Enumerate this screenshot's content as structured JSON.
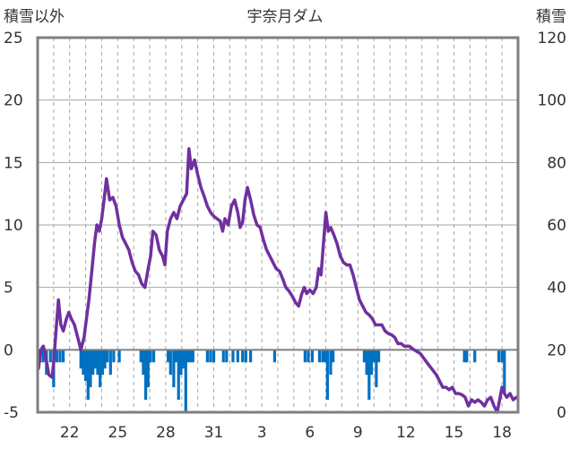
{
  "chart_data": {
    "type": "line",
    "title": "宇奈月ダム",
    "left_axis": {
      "title": "積雪以外",
      "ylim": [
        -5,
        25
      ],
      "ticks": [
        -5,
        0,
        5,
        10,
        15,
        20,
        25
      ]
    },
    "right_axis": {
      "title": "積雪",
      "ylim": [
        0,
        120
      ],
      "ticks": [
        0,
        20,
        40,
        60,
        80,
        100,
        120
      ]
    },
    "x_axis": {
      "range": [
        20,
        50
      ],
      "ticks": [
        {
          "x": 22,
          "label": "22"
        },
        {
          "x": 25,
          "label": "25"
        },
        {
          "x": 28,
          "label": "28"
        },
        {
          "x": 31,
          "label": "31"
        },
        {
          "x": 34,
          "label": "3"
        },
        {
          "x": 37,
          "label": "6"
        },
        {
          "x": 40,
          "label": "9"
        },
        {
          "x": 43,
          "label": "12"
        },
        {
          "x": 46,
          "label": "15"
        },
        {
          "x": 49,
          "label": "18"
        }
      ]
    },
    "grid": "horizontal lines at each left-axis tick, dashed vertical lines each day",
    "colors": {
      "line": "#7030A0",
      "bars": "#0070C0",
      "zero_line": "#7f7f7f",
      "frame": "#7f7f7f",
      "grid": "#a6a6a6"
    },
    "series": [
      {
        "axis": "left",
        "type": "line",
        "points": [
          [
            20.05,
            -1.5
          ],
          [
            20.2,
            0.0
          ],
          [
            20.35,
            0.3
          ],
          [
            20.5,
            -0.5
          ],
          [
            20.7,
            -2.0
          ],
          [
            20.9,
            -2.2
          ],
          [
            21.0,
            -1.0
          ],
          [
            21.15,
            1.5
          ],
          [
            21.3,
            4.0
          ],
          [
            21.45,
            2.0
          ],
          [
            21.6,
            1.5
          ],
          [
            21.8,
            2.5
          ],
          [
            21.95,
            3.0
          ],
          [
            22.1,
            2.5
          ],
          [
            22.3,
            2.0
          ],
          [
            22.5,
            1.0
          ],
          [
            22.7,
            0.0
          ],
          [
            22.9,
            1.0
          ],
          [
            23.05,
            2.5
          ],
          [
            23.2,
            4.0
          ],
          [
            23.4,
            6.5
          ],
          [
            23.55,
            8.5
          ],
          [
            23.7,
            10.0
          ],
          [
            23.85,
            9.5
          ],
          [
            24.0,
            10.5
          ],
          [
            24.15,
            12.0
          ],
          [
            24.3,
            13.7
          ],
          [
            24.5,
            12.0
          ],
          [
            24.7,
            12.2
          ],
          [
            24.9,
            11.5
          ],
          [
            25.1,
            10.0
          ],
          [
            25.3,
            9.0
          ],
          [
            25.5,
            8.5
          ],
          [
            25.7,
            8.0
          ],
          [
            25.9,
            7.0
          ],
          [
            26.1,
            6.3
          ],
          [
            26.3,
            6.0
          ],
          [
            26.5,
            5.3
          ],
          [
            26.7,
            5.0
          ],
          [
            26.9,
            6.5
          ],
          [
            27.05,
            7.5
          ],
          [
            27.2,
            9.5
          ],
          [
            27.4,
            9.2
          ],
          [
            27.6,
            8.0
          ],
          [
            27.8,
            7.5
          ],
          [
            27.95,
            6.8
          ],
          [
            28.1,
            9.5
          ],
          [
            28.3,
            10.5
          ],
          [
            28.5,
            11.0
          ],
          [
            28.7,
            10.5
          ],
          [
            28.9,
            11.5
          ],
          [
            29.1,
            12.0
          ],
          [
            29.3,
            12.5
          ],
          [
            29.45,
            16.1
          ],
          [
            29.6,
            14.5
          ],
          [
            29.8,
            15.2
          ],
          [
            30.0,
            14.0
          ],
          [
            30.2,
            13.0
          ],
          [
            30.4,
            12.3
          ],
          [
            30.6,
            11.5
          ],
          [
            30.8,
            11.0
          ],
          [
            31.0,
            10.7
          ],
          [
            31.2,
            10.5
          ],
          [
            31.4,
            10.3
          ],
          [
            31.55,
            9.5
          ],
          [
            31.7,
            10.5
          ],
          [
            31.9,
            10.0
          ],
          [
            32.1,
            11.5
          ],
          [
            32.3,
            12.0
          ],
          [
            32.5,
            11.0
          ],
          [
            32.65,
            9.8
          ],
          [
            32.8,
            10.2
          ],
          [
            32.95,
            12.0
          ],
          [
            33.1,
            13.0
          ],
          [
            33.3,
            12.0
          ],
          [
            33.5,
            10.8
          ],
          [
            33.7,
            10.0
          ],
          [
            33.9,
            9.8
          ],
          [
            34.1,
            8.8
          ],
          [
            34.3,
            8.0
          ],
          [
            34.5,
            7.5
          ],
          [
            34.7,
            7.0
          ],
          [
            34.9,
            6.5
          ],
          [
            35.1,
            6.3
          ],
          [
            35.3,
            5.7
          ],
          [
            35.5,
            5.0
          ],
          [
            35.7,
            4.7
          ],
          [
            35.9,
            4.3
          ],
          [
            36.1,
            3.8
          ],
          [
            36.3,
            3.5
          ],
          [
            36.5,
            4.5
          ],
          [
            36.65,
            5.0
          ],
          [
            36.8,
            4.5
          ],
          [
            37.0,
            4.8
          ],
          [
            37.2,
            4.5
          ],
          [
            37.4,
            5.0
          ],
          [
            37.55,
            6.5
          ],
          [
            37.7,
            6.0
          ],
          [
            37.85,
            8.5
          ],
          [
            38.0,
            11.0
          ],
          [
            38.15,
            9.5
          ],
          [
            38.3,
            9.8
          ],
          [
            38.5,
            9.2
          ],
          [
            38.7,
            8.5
          ],
          [
            38.9,
            7.5
          ],
          [
            39.1,
            7.0
          ],
          [
            39.3,
            6.8
          ],
          [
            39.5,
            6.8
          ],
          [
            39.7,
            6.0
          ],
          [
            39.9,
            5.0
          ],
          [
            40.1,
            4.0
          ],
          [
            40.3,
            3.5
          ],
          [
            40.5,
            3.0
          ],
          [
            40.7,
            2.8
          ],
          [
            40.9,
            2.5
          ],
          [
            41.1,
            2.0
          ],
          [
            41.3,
            2.0
          ],
          [
            41.5,
            2.0
          ],
          [
            41.7,
            1.5
          ],
          [
            41.9,
            1.3
          ],
          [
            42.1,
            1.2
          ],
          [
            42.3,
            1.0
          ],
          [
            42.5,
            0.5
          ],
          [
            42.7,
            0.5
          ],
          [
            42.9,
            0.3
          ],
          [
            43.2,
            0.3
          ],
          [
            43.5,
            0.0
          ],
          [
            43.9,
            -0.3
          ],
          [
            44.3,
            -1.0
          ],
          [
            44.6,
            -1.5
          ],
          [
            44.9,
            -2.0
          ],
          [
            45.1,
            -2.5
          ],
          [
            45.3,
            -3.0
          ],
          [
            45.5,
            -3.0
          ],
          [
            45.7,
            -3.2
          ],
          [
            45.9,
            -3.0
          ],
          [
            46.1,
            -3.5
          ],
          [
            46.3,
            -3.5
          ],
          [
            46.5,
            -3.6
          ],
          [
            46.7,
            -3.8
          ],
          [
            46.9,
            -4.5
          ],
          [
            47.1,
            -4.0
          ],
          [
            47.3,
            -4.2
          ],
          [
            47.5,
            -4.0
          ],
          [
            47.7,
            -4.2
          ],
          [
            47.9,
            -4.5
          ],
          [
            48.1,
            -4.0
          ],
          [
            48.3,
            -3.8
          ],
          [
            48.5,
            -4.5
          ],
          [
            48.7,
            -5.0
          ],
          [
            48.85,
            -4.0
          ],
          [
            49.0,
            -3.0
          ],
          [
            49.15,
            -3.5
          ],
          [
            49.3,
            -3.8
          ],
          [
            49.5,
            -3.5
          ],
          [
            49.7,
            -4.0
          ],
          [
            49.9,
            -3.8
          ]
        ]
      },
      {
        "axis": "left",
        "type": "bar",
        "baseline": 0,
        "points": [
          [
            20.15,
            -1.0
          ],
          [
            20.35,
            -1.0
          ],
          [
            20.55,
            -2.0
          ],
          [
            20.8,
            -1.0
          ],
          [
            21.0,
            -3.0
          ],
          [
            21.2,
            -1.0
          ],
          [
            21.4,
            -1.0
          ],
          [
            21.6,
            -1.0
          ],
          [
            22.7,
            -1.5
          ],
          [
            22.85,
            -2.0
          ],
          [
            23.0,
            -2.5
          ],
          [
            23.15,
            -4.0
          ],
          [
            23.3,
            -3.0
          ],
          [
            23.45,
            -2.0
          ],
          [
            23.6,
            -1.5
          ],
          [
            23.75,
            -2.0
          ],
          [
            23.9,
            -3.0
          ],
          [
            24.05,
            -2.0
          ],
          [
            24.2,
            -1.5
          ],
          [
            24.35,
            -1.0
          ],
          [
            24.55,
            -2.0
          ],
          [
            24.75,
            -1.0
          ],
          [
            25.1,
            -1.0
          ],
          [
            26.45,
            -1.0
          ],
          [
            26.6,
            -2.0
          ],
          [
            26.75,
            -4.0
          ],
          [
            26.9,
            -3.0
          ],
          [
            27.05,
            -1.0
          ],
          [
            27.25,
            -1.0
          ],
          [
            28.15,
            -1.0
          ],
          [
            28.3,
            -2.0
          ],
          [
            28.5,
            -3.0
          ],
          [
            28.65,
            -1.0
          ],
          [
            28.8,
            -4.0
          ],
          [
            28.95,
            -2.0
          ],
          [
            29.1,
            -1.5
          ],
          [
            29.25,
            -5.0
          ],
          [
            29.4,
            -1.0
          ],
          [
            29.55,
            -1.0
          ],
          [
            29.7,
            -1.0
          ],
          [
            30.6,
            -1.0
          ],
          [
            30.8,
            -1.0
          ],
          [
            31.0,
            -1.0
          ],
          [
            31.6,
            -1.0
          ],
          [
            31.8,
            -1.0
          ],
          [
            32.2,
            -1.0
          ],
          [
            32.5,
            -1.0
          ],
          [
            32.8,
            -1.0
          ],
          [
            33.0,
            -1.0
          ],
          [
            33.3,
            -1.0
          ],
          [
            34.8,
            -1.0
          ],
          [
            36.7,
            -1.0
          ],
          [
            36.9,
            -1.0
          ],
          [
            37.15,
            -1.0
          ],
          [
            37.6,
            -1.0
          ],
          [
            37.8,
            -1.0
          ],
          [
            37.95,
            -1.0
          ],
          [
            38.1,
            -4.0
          ],
          [
            38.3,
            -2.0
          ],
          [
            38.45,
            -1.0
          ],
          [
            40.4,
            -1.0
          ],
          [
            40.55,
            -2.0
          ],
          [
            40.7,
            -4.0
          ],
          [
            40.85,
            -2.0
          ],
          [
            41.0,
            -1.0
          ],
          [
            41.15,
            -3.0
          ],
          [
            41.3,
            -1.0
          ],
          [
            46.65,
            -1.0
          ],
          [
            46.8,
            -1.0
          ],
          [
            47.3,
            -1.0
          ],
          [
            48.8,
            -1.0
          ],
          [
            49.0,
            -1.0
          ],
          [
            49.15,
            -3.5
          ]
        ]
      }
    ]
  }
}
